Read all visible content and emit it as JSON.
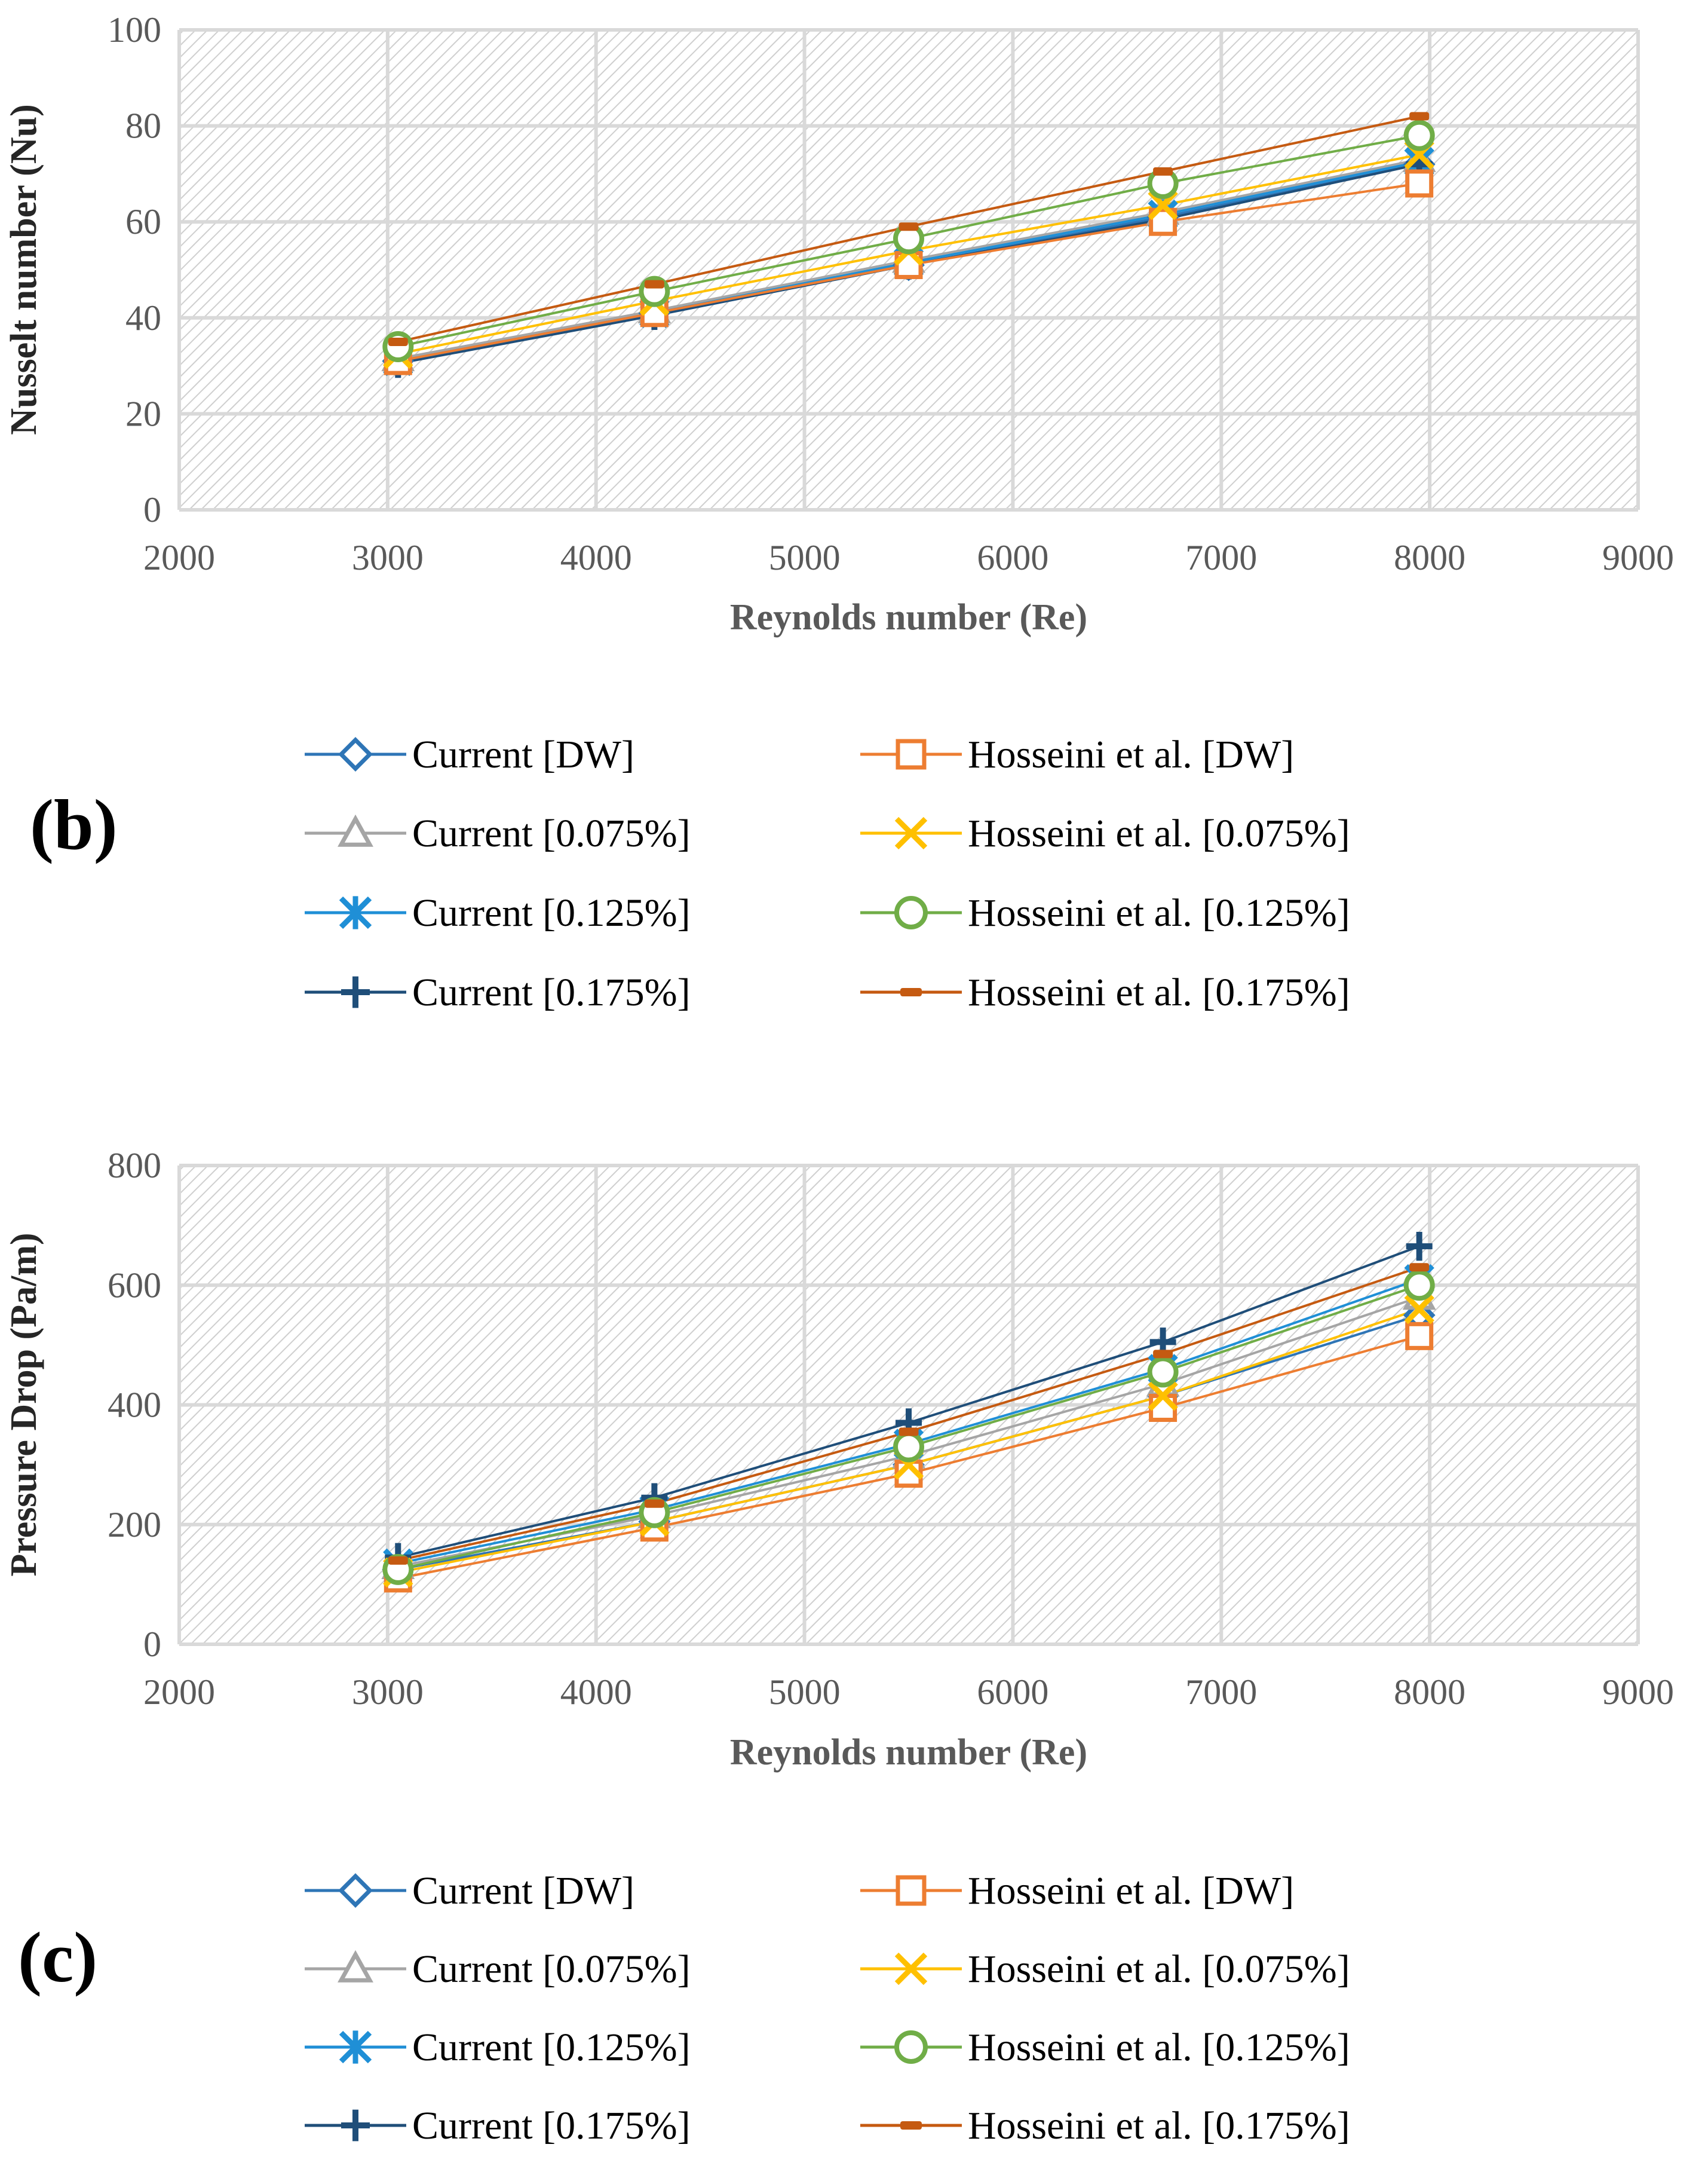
{
  "chart_data": [
    {
      "type": "line",
      "panel": "(b)",
      "title": "",
      "xlabel": "Reynolds number (Re)",
      "ylabel": "Nusselt number (Nu)",
      "xlim": [
        2000,
        9000
      ],
      "ylim": [
        0,
        100
      ],
      "xticks": [
        2000,
        3000,
        4000,
        5000,
        6000,
        7000,
        8000,
        9000
      ],
      "yticks": [
        0,
        20,
        40,
        60,
        80,
        100
      ],
      "grid": true,
      "x": [
        3050,
        4280,
        5500,
        6720,
        7950
      ],
      "series": [
        {
          "name": "Current [DW]",
          "color": "#2E75B6",
          "marker": "diamond",
          "values": [
            31,
            41,
            51,
            61,
            72
          ]
        },
        {
          "name": "Current [0.075%]",
          "color": "#A5A5A5",
          "marker": "triangle",
          "values": [
            31.5,
            41.5,
            52,
            62,
            73
          ]
        },
        {
          "name": "Current [0.125%]",
          "color": "#1F8FD6",
          "marker": "asterisk",
          "values": [
            31,
            41,
            51.5,
            61.5,
            72.5
          ]
        },
        {
          "name": "Current [0.175%]",
          "color": "#1F4E79",
          "marker": "plus",
          "values": [
            30.5,
            40.5,
            51,
            60.5,
            72
          ]
        },
        {
          "name": "Hosseini et al. [DW]",
          "color": "#ED7D31",
          "marker": "square",
          "values": [
            31,
            41,
            51,
            60,
            68
          ]
        },
        {
          "name": "Hosseini et al. [0.075%]",
          "color": "#FFC000",
          "marker": "x",
          "values": [
            32.5,
            43.5,
            54,
            63.5,
            74
          ]
        },
        {
          "name": "Hosseini et al. [0.125%]",
          "color": "#70AD47",
          "marker": "circle",
          "values": [
            34,
            45.5,
            56.5,
            68,
            78
          ]
        },
        {
          "name": "Hosseini et al. [0.175%]",
          "color": "#C55A11",
          "marker": "dash",
          "values": [
            35,
            47,
            59,
            70.5,
            82
          ]
        }
      ]
    },
    {
      "type": "line",
      "panel": "(c)",
      "title": "",
      "xlabel": "Reynolds number (Re)",
      "ylabel": "Pressure Drop (Pa/m)",
      "xlim": [
        2000,
        9000
      ],
      "ylim": [
        0,
        800
      ],
      "xticks": [
        2000,
        3000,
        4000,
        5000,
        6000,
        7000,
        8000,
        9000
      ],
      "yticks": [
        0,
        200,
        400,
        600,
        800
      ],
      "grid": true,
      "x": [
        3050,
        4280,
        5500,
        6720,
        7950
      ],
      "series": [
        {
          "name": "Current [DW]",
          "color": "#2E75B6",
          "marker": "diamond",
          "values": [
            125,
            205,
            300,
            415,
            550
          ]
        },
        {
          "name": "Current [0.075%]",
          "color": "#A5A5A5",
          "marker": "triangle",
          "values": [
            130,
            215,
            315,
            435,
            580
          ]
        },
        {
          "name": "Current [0.125%]",
          "color": "#1F8FD6",
          "marker": "asterisk",
          "values": [
            135,
            225,
            335,
            460,
            610
          ]
        },
        {
          "name": "Current [0.175%]",
          "color": "#1F4E79",
          "marker": "plus",
          "values": [
            145,
            245,
            370,
            505,
            665
          ]
        },
        {
          "name": "Hosseini et al. [DW]",
          "color": "#ED7D31",
          "marker": "square",
          "values": [
            110,
            195,
            285,
            395,
            515
          ]
        },
        {
          "name": "Hosseini et al. [0.075%]",
          "color": "#FFC000",
          "marker": "x",
          "values": [
            120,
            205,
            300,
            415,
            560
          ]
        },
        {
          "name": "Hosseini et al. [0.125%]",
          "color": "#70AD47",
          "marker": "circle",
          "values": [
            125,
            220,
            330,
            455,
            600
          ]
        },
        {
          "name": "Hosseini et al. [0.175%]",
          "color": "#C55A11",
          "marker": "dash",
          "values": [
            140,
            235,
            355,
            485,
            630
          ]
        }
      ]
    }
  ]
}
